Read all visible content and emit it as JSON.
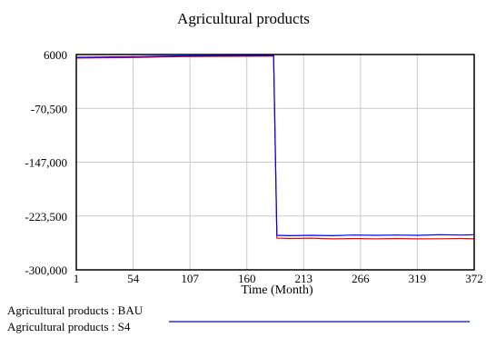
{
  "chart_data": {
    "type": "line",
    "title": "Agricultural products",
    "xlabel": "Time (Month)",
    "ylabel": "",
    "xlim": [
      1,
      372
    ],
    "ylim": [
      -300000,
      6000
    ],
    "x_ticks": [
      1,
      54,
      107,
      160,
      213,
      266,
      319,
      372
    ],
    "x_tick_labels": [
      "1",
      "54",
      "107",
      "160",
      "213",
      "266",
      "319",
      "372"
    ],
    "y_ticks": [
      6000,
      -70500,
      -147000,
      -223500,
      -300000
    ],
    "y_tick_labels": [
      "6000",
      "-70,500",
      "-147,000",
      "-223,500",
      "-300,000"
    ],
    "grid": true,
    "legend_position": "bottom-left",
    "series": [
      {
        "name": "Agricultural products : BAU",
        "color": "#ff0000",
        "x": [
          1,
          20,
          40,
          60,
          80,
          100,
          120,
          140,
          160,
          180,
          185,
          188,
          200,
          220,
          240,
          260,
          280,
          300,
          320,
          340,
          360,
          372
        ],
        "values": [
          1000,
          1200,
          1500,
          1800,
          2500,
          3000,
          3200,
          3400,
          3600,
          3700,
          3700,
          -255000,
          -255500,
          -255000,
          -256000,
          -255500,
          -256000,
          -255500,
          -256000,
          -255800,
          -255500,
          -256000
        ]
      },
      {
        "name": "Agricultural products : S4",
        "color": "#0000ff",
        "x": [
          1,
          20,
          40,
          60,
          80,
          100,
          120,
          140,
          160,
          180,
          185,
          188,
          200,
          220,
          240,
          260,
          280,
          300,
          320,
          340,
          360,
          372
        ],
        "values": [
          2000,
          2300,
          2700,
          3000,
          3500,
          4000,
          4200,
          4400,
          4600,
          4700,
          4700,
          -251000,
          -251500,
          -251000,
          -251500,
          -250500,
          -251000,
          -250500,
          -251000,
          -250000,
          -250500,
          -250000
        ]
      }
    ]
  }
}
